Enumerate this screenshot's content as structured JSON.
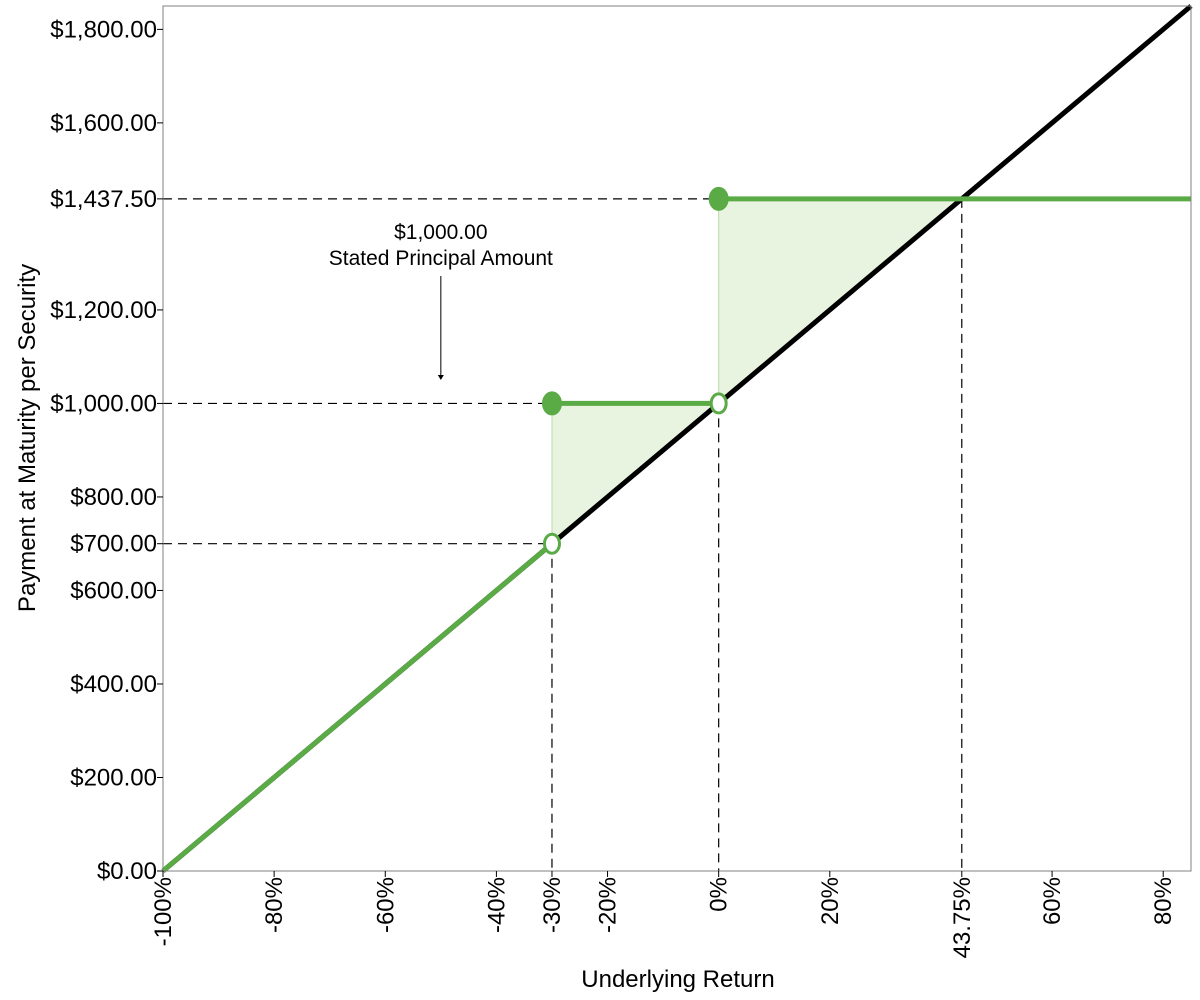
{
  "chart_data": {
    "type": "line",
    "title": "",
    "xlabel": "Underlying Return",
    "ylabel": "Payment at Maturity per Security",
    "xlim": [
      -100,
      85
    ],
    "ylim": [
      0,
      1850
    ],
    "grid": false,
    "x_ticks": [
      {
        "value": -100,
        "label": "-100%"
      },
      {
        "value": -80,
        "label": "-80%"
      },
      {
        "value": -60,
        "label": "-60%"
      },
      {
        "value": -40,
        "label": "-40%"
      },
      {
        "value": -30,
        "label": "-30%"
      },
      {
        "value": -20,
        "label": "-20%"
      },
      {
        "value": 0,
        "label": "0%"
      },
      {
        "value": 20,
        "label": "20%"
      },
      {
        "value": 43.75,
        "label": "43.75%"
      },
      {
        "value": 60,
        "label": "60%"
      },
      {
        "value": 80,
        "label": "80%"
      }
    ],
    "y_ticks": [
      {
        "value": 0,
        "label": "$0.00"
      },
      {
        "value": 200,
        "label": "$200.00"
      },
      {
        "value": 400,
        "label": "$400.00"
      },
      {
        "value": 600,
        "label": "$600.00"
      },
      {
        "value": 700,
        "label": "$700.00"
      },
      {
        "value": 800,
        "label": "$800.00"
      },
      {
        "value": 1000,
        "label": "$1,000.00"
      },
      {
        "value": 1200,
        "label": "$1,200.00"
      },
      {
        "value": 1437.5,
        "label": "$1,437.50"
      },
      {
        "value": 1600,
        "label": "$1,600.00"
      },
      {
        "value": 1800,
        "label": "$1,800.00"
      }
    ],
    "reference_lines": [
      {
        "x": -30,
        "y": 700
      },
      {
        "x": 0,
        "y": 1000
      },
      {
        "x": 43.75,
        "y": 1437.5
      }
    ],
    "series": [
      {
        "role": "underlying",
        "color": "#000000",
        "points": [
          {
            "x": -100,
            "y": 0
          },
          {
            "x": 85,
            "y": 1850
          }
        ]
      },
      {
        "role": "security-payment",
        "color": "#5aaa46",
        "segments": [
          [
            {
              "x": -100,
              "y": 0
            },
            {
              "x": -30,
              "y": 700
            }
          ],
          [
            {
              "x": -30,
              "y": 1000
            },
            {
              "x": 0,
              "y": 1000
            }
          ],
          [
            {
              "x": 0,
              "y": 1437.5
            },
            {
              "x": 85,
              "y": 1437.5
            }
          ]
        ],
        "filled_markers": [
          {
            "x": -30,
            "y": 1000
          },
          {
            "x": 0,
            "y": 1437.5
          }
        ],
        "open_markers": [
          {
            "x": -30,
            "y": 700
          },
          {
            "x": 0,
            "y": 1000
          }
        ]
      }
    ],
    "shaded_regions": [
      {
        "color": "#e9f4e0",
        "points": [
          {
            "x": -30,
            "y": 700
          },
          {
            "x": -30,
            "y": 1000
          },
          {
            "x": 0,
            "y": 1000
          }
        ]
      },
      {
        "color": "#e9f4e0",
        "points": [
          {
            "x": 0,
            "y": 1000
          },
          {
            "x": 0,
            "y": 1437.5
          },
          {
            "x": 43.75,
            "y": 1437.5
          }
        ]
      }
    ],
    "annotations": [
      {
        "text_lines": [
          "$1,000.00",
          "Stated Principal Amount"
        ],
        "arrow_x": -50,
        "arrow_to_y": 1050
      }
    ]
  }
}
